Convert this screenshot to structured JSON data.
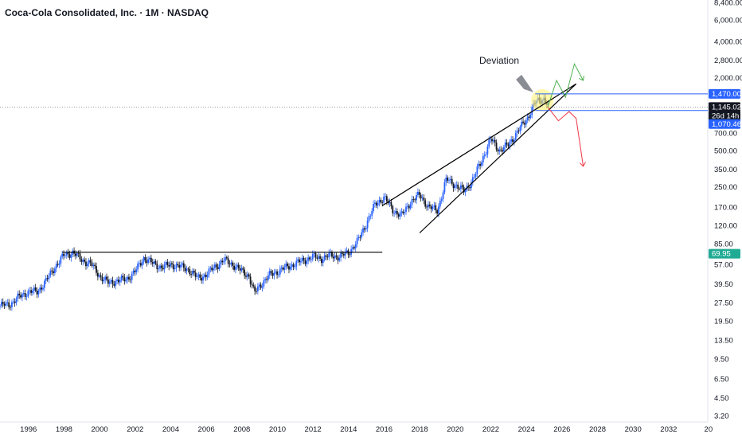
{
  "header": {
    "title": "Coca-Cola Consolidated, Inc. · 1M · NASDAQ"
  },
  "chart_data": {
    "type": "candlestick",
    "title": "Coca-Cola Consolidated, Inc. · 1M · NASDAQ",
    "scale": "log",
    "ylim": [
      3.2,
      8400
    ],
    "xlim_years": [
      1994.4,
      2034.2
    ],
    "y_ticks": [
      "8,400.00",
      "6,000.00",
      "4,000.00",
      "2,800.00",
      "2,000.00",
      "1,470.00",
      "1,145.02",
      "26d 14h",
      "1,070.46",
      "700.00",
      "500.00",
      "350.00",
      "250.00",
      "170.00",
      "120.00",
      "85.00",
      "69.95",
      "57.00",
      "39.50",
      "27.50",
      "19.50",
      "13.50",
      "9.50",
      "6.50",
      "4.50",
      "3.20"
    ],
    "x_ticks": [
      "1996",
      "1998",
      "2000",
      "2002",
      "2004",
      "2006",
      "2008",
      "2010",
      "2012",
      "2014",
      "2016",
      "2018",
      "2020",
      "2022",
      "2024",
      "2026",
      "2028",
      "2030",
      "2032",
      "20"
    ],
    "price_path": [
      [
        1994.4,
        26
      ],
      [
        1995.0,
        27
      ],
      [
        1995.5,
        31
      ],
      [
        1996.0,
        34
      ],
      [
        1996.5,
        34
      ],
      [
        1997.0,
        42
      ],
      [
        1997.5,
        55
      ],
      [
        1998.0,
        68
      ],
      [
        1998.5,
        72
      ],
      [
        1999.0,
        62
      ],
      [
        1999.5,
        58
      ],
      [
        2000.0,
        46
      ],
      [
        2000.5,
        40
      ],
      [
        2001.0,
        42
      ],
      [
        2001.5,
        43
      ],
      [
        2002.0,
        50
      ],
      [
        2002.5,
        65
      ],
      [
        2003.0,
        58
      ],
      [
        2003.5,
        54
      ],
      [
        2004.0,
        57
      ],
      [
        2004.5,
        55
      ],
      [
        2005.0,
        52
      ],
      [
        2005.5,
        44
      ],
      [
        2006.0,
        47
      ],
      [
        2006.5,
        55
      ],
      [
        2007.0,
        62
      ],
      [
        2007.5,
        57
      ],
      [
        2008.0,
        50
      ],
      [
        2008.4,
        46
      ],
      [
        2008.7,
        33
      ],
      [
        2009.0,
        38
      ],
      [
        2009.5,
        46
      ],
      [
        2010.0,
        50
      ],
      [
        2010.5,
        54
      ],
      [
        2011.0,
        58
      ],
      [
        2011.5,
        62
      ],
      [
        2012.0,
        66
      ],
      [
        2012.5,
        64
      ],
      [
        2013.0,
        68
      ],
      [
        2013.5,
        66
      ],
      [
        2014.0,
        72
      ],
      [
        2014.5,
        88
      ],
      [
        2015.0,
        125
      ],
      [
        2015.5,
        180
      ],
      [
        2016.0,
        205
      ],
      [
        2016.5,
        160
      ],
      [
        2017.0,
        145
      ],
      [
        2017.5,
        190
      ],
      [
        2018.0,
        215
      ],
      [
        2018.5,
        170
      ],
      [
        2019.0,
        160
      ],
      [
        2019.5,
        290
      ],
      [
        2020.0,
        260
      ],
      [
        2020.5,
        230
      ],
      [
        2021.0,
        290
      ],
      [
        2021.5,
        420
      ],
      [
        2022.0,
        620
      ],
      [
        2022.5,
        500
      ],
      [
        2023.0,
        560
      ],
      [
        2023.5,
        720
      ],
      [
        2024.0,
        900
      ],
      [
        2024.5,
        1250
      ],
      [
        2025.0,
        1350
      ],
      [
        2025.3,
        1145
      ]
    ],
    "lines": [
      {
        "name": "resistance",
        "x": [
          1997.9,
          2015.9
        ],
        "y": [
          72,
          72
        ],
        "color": "#000000"
      },
      {
        "name": "wedge-upper",
        "x": [
          2015.9,
          2026.8
        ],
        "y": [
          175,
          1780
        ],
        "color": "#000000"
      },
      {
        "name": "wedge-lower",
        "x": [
          2018.0,
          2026.8
        ],
        "y": [
          104,
          1780
        ],
        "color": "#000000"
      },
      {
        "name": "range-high",
        "x": [
          2024.5,
          2034.2
        ],
        "y": [
          1470,
          1470
        ],
        "color": "#2962ff"
      },
      {
        "name": "range-low",
        "x": [
          2024.5,
          2034.2
        ],
        "y": [
          1070.46,
          1070.46
        ],
        "color": "#2962ff"
      },
      {
        "name": "green-path",
        "x": [
          2025.2,
          2025.7,
          2026.2,
          2026.7,
          2027.2
        ],
        "y": [
          1145,
          1900,
          1380,
          2600,
          1900
        ],
        "color": "#4caf50"
      },
      {
        "name": "red-path",
        "x": [
          2025.2,
          2025.8,
          2026.4,
          2026.8,
          2027.2
        ],
        "y": [
          1145,
          880,
          1050,
          920,
          370
        ],
        "color": "#f23645"
      }
    ],
    "price_tags": [
      {
        "label": "1,470.00",
        "value": 1470,
        "bg": "#2962ff",
        "fg": "#ffffff"
      },
      {
        "label": "1,145.02",
        "value": 1145.02,
        "bg": "#131722",
        "fg": "#ffffff"
      },
      {
        "label": "26d 14h",
        "value": 1145.02,
        "bg": "#131722",
        "fg": "#ffffff"
      },
      {
        "label": "1,070.46",
        "value": 1070.46,
        "bg": "#2962ff",
        "fg": "#ffffff"
      },
      {
        "label": "69.95",
        "value": 69.95,
        "bg": "#22ab94",
        "fg": "#ffffff"
      }
    ],
    "annotation": {
      "text": "Deviation",
      "arrow_to": [
        2024.4,
        1470
      ]
    },
    "colors": {
      "up": "#2962ff",
      "down": "#131722",
      "highlight": "#fff176"
    }
  }
}
